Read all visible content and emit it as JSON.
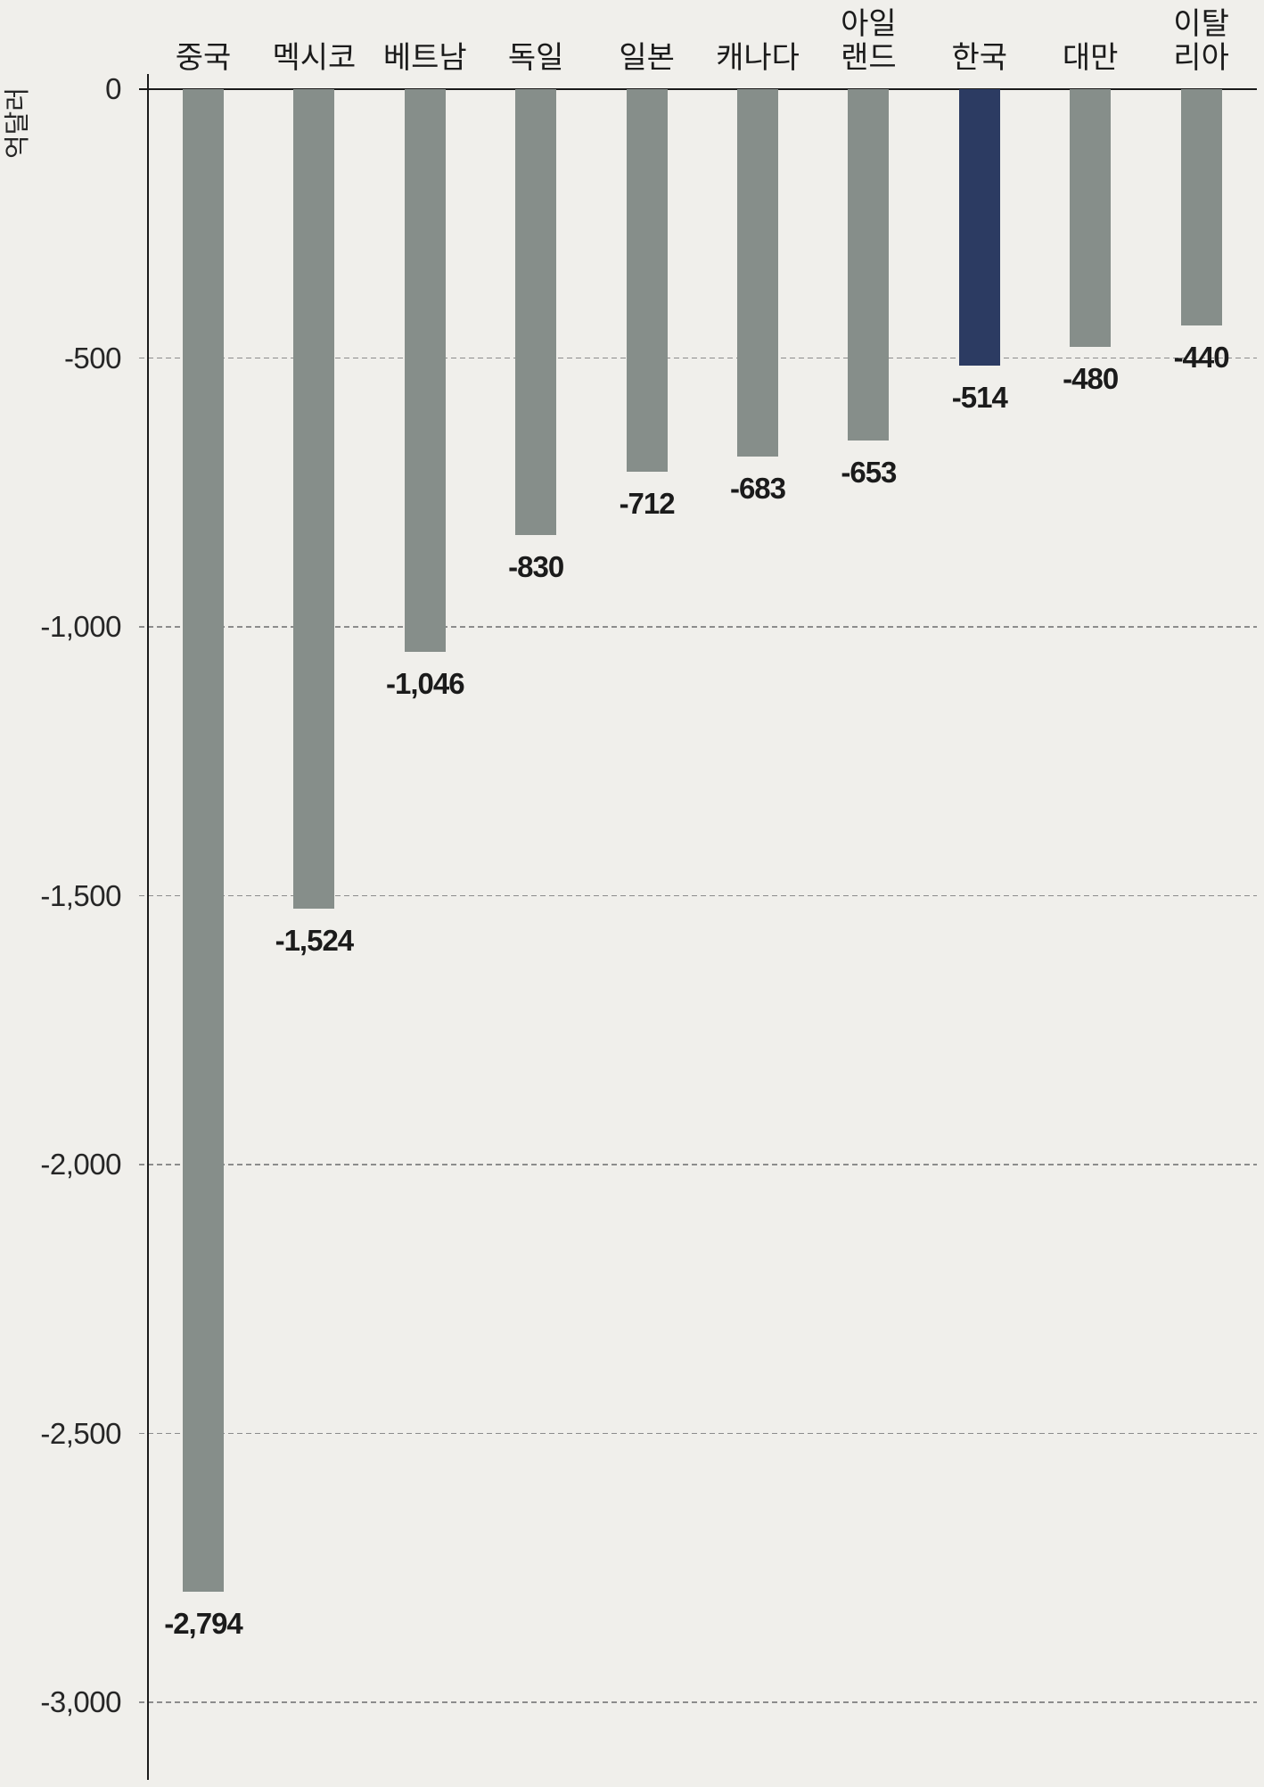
{
  "chart_data": {
    "type": "bar",
    "categories": [
      "중국",
      "멕시코",
      "베트남",
      "독일",
      "일본",
      "캐나다",
      "아일랜드",
      "한국",
      "대만",
      "이탈리아"
    ],
    "values": [
      -2794,
      -1524,
      -1046,
      -830,
      -712,
      -683,
      -653,
      -514,
      -480,
      -440
    ],
    "data_labels": [
      "-2,794",
      "-1,524",
      "-1,046",
      "-830",
      "-712",
      "-683",
      "-653",
      "-514",
      "-480",
      "-440"
    ],
    "ylabel": "억달러",
    "ylim": [
      -3000,
      0
    ],
    "yticks": [
      0,
      -500,
      -1000,
      -1500,
      -2000,
      -2500,
      -3000
    ],
    "ytick_labels": [
      "0",
      "-500",
      "-1,000",
      "-1,500",
      "-2,000",
      "-2,500",
      "-3,000"
    ],
    "x_axis_position": "top",
    "grid": true,
    "bar_colors": [
      "#868e8a",
      "#868e8a",
      "#868e8a",
      "#868e8a",
      "#868e8a",
      "#868e8a",
      "#868e8a",
      "#2c3b62",
      "#868e8a",
      "#868e8a"
    ],
    "colors": {
      "background": "#f0efeb",
      "grid": "#8c8c8c",
      "axis": "#1a1a1a"
    }
  }
}
